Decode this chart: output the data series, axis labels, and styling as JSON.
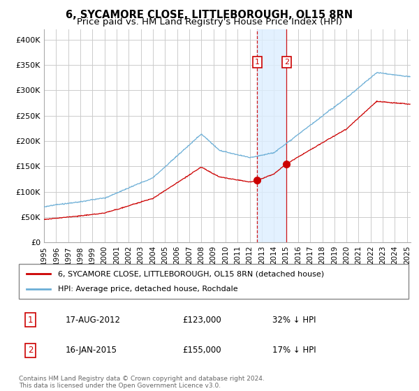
{
  "title": "6, SYCAMORE CLOSE, LITTLEBOROUGH, OL15 8RN",
  "subtitle": "Price paid vs. HM Land Registry's House Price Index (HPI)",
  "title_fontsize": 10.5,
  "subtitle_fontsize": 9.5,
  "ylabel_ticks": [
    "£0",
    "£50K",
    "£100K",
    "£150K",
    "£200K",
    "£250K",
    "£300K",
    "£350K",
    "£400K"
  ],
  "ytick_values": [
    0,
    50000,
    100000,
    150000,
    200000,
    250000,
    300000,
    350000,
    400000
  ],
  "ylim": [
    0,
    420000
  ],
  "xlim_start": 1995.0,
  "xlim_end": 2025.3,
  "hpi_color": "#6baed6",
  "price_color": "#cc0000",
  "background_color": "#ffffff",
  "grid_color": "#cccccc",
  "transaction1_date": 2012.625,
  "transaction1_price": 123000,
  "transaction2_date": 2015.04,
  "transaction2_price": 155000,
  "legend_entries": [
    "6, SYCAMORE CLOSE, LITTLEBOROUGH, OL15 8RN (detached house)",
    "HPI: Average price, detached house, Rochdale"
  ],
  "note1_label": "1",
  "note1_date": "17-AUG-2012",
  "note1_price": "£123,000",
  "note1_hpi": "32% ↓ HPI",
  "note2_label": "2",
  "note2_date": "16-JAN-2015",
  "note2_price": "£155,000",
  "note2_hpi": "17% ↓ HPI",
  "footer": "Contains HM Land Registry data © Crown copyright and database right 2024.\nThis data is licensed under the Open Government Licence v3.0."
}
